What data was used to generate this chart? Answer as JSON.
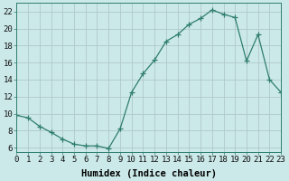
{
  "xlabel": "Humidex (Indice chaleur)",
  "x": [
    0,
    1,
    2,
    3,
    4,
    5,
    6,
    7,
    8,
    9,
    10,
    11,
    12,
    13,
    14,
    15,
    16,
    17,
    18,
    19,
    20,
    21,
    22,
    23
  ],
  "y": [
    9.8,
    9.5,
    8.5,
    7.8,
    7.0,
    6.4,
    6.2,
    6.2,
    5.9,
    8.2,
    12.5,
    14.7,
    16.3,
    18.5,
    19.3,
    20.5,
    21.2,
    22.2,
    21.7,
    21.3,
    16.2,
    19.3,
    14.0,
    12.5
  ],
  "line_color": "#2e7d6e",
  "marker": "+",
  "marker_size": 4,
  "bg_color": "#cce9e9",
  "grid_color": "#b0c8c8",
  "xlim": [
    0,
    23
  ],
  "ylim": [
    5.5,
    23
  ],
  "yticks": [
    6,
    8,
    10,
    12,
    14,
    16,
    18,
    20,
    22
  ],
  "xticks": [
    0,
    1,
    2,
    3,
    4,
    5,
    6,
    7,
    8,
    9,
    10,
    11,
    12,
    13,
    14,
    15,
    16,
    17,
    18,
    19,
    20,
    21,
    22,
    23
  ],
  "xtick_labels": [
    "0",
    "1",
    "2",
    "3",
    "4",
    "5",
    "6",
    "7",
    "8",
    "9",
    "10",
    "11",
    "12",
    "13",
    "14",
    "15",
    "16",
    "17",
    "18",
    "19",
    "20",
    "21",
    "22",
    "23"
  ],
  "tick_fontsize": 6.5,
  "label_fontsize": 7.5
}
